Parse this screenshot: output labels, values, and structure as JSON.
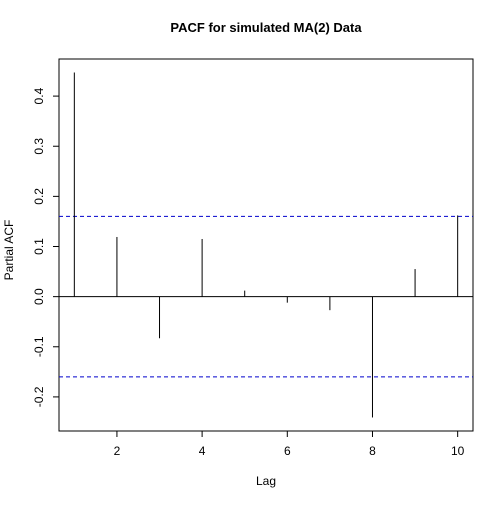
{
  "chart_data": {
    "type": "bar",
    "title": "PACF for simulated MA(2) Data",
    "xlabel": "Lag",
    "ylabel": "Partial ACF",
    "x": [
      1,
      2,
      3,
      4,
      5,
      6,
      7,
      8,
      9,
      10
    ],
    "values": [
      0.447,
      0.119,
      -0.083,
      0.115,
      0.012,
      -0.012,
      -0.027,
      -0.241,
      0.055,
      0.162
    ],
    "xlim": [
      0.64,
      10.36
    ],
    "ylim": [
      -0.268,
      0.474
    ],
    "xticks": [
      2,
      4,
      6,
      8,
      10
    ],
    "xtick_labels": [
      "2",
      "4",
      "6",
      "8",
      "10"
    ],
    "yticks": [
      -0.2,
      -0.1,
      0.0,
      0.1,
      0.2,
      0.3,
      0.4
    ],
    "ytick_labels": [
      "-0.2",
      "-0.1",
      "0.0",
      "0.1",
      "0.2",
      "0.3",
      "0.4"
    ],
    "confidence_bound": 0.16,
    "colors": {
      "bars": "#000000",
      "zero_line": "#000000",
      "confidence": "#0000cc"
    },
    "grid": false,
    "legend": "none"
  }
}
